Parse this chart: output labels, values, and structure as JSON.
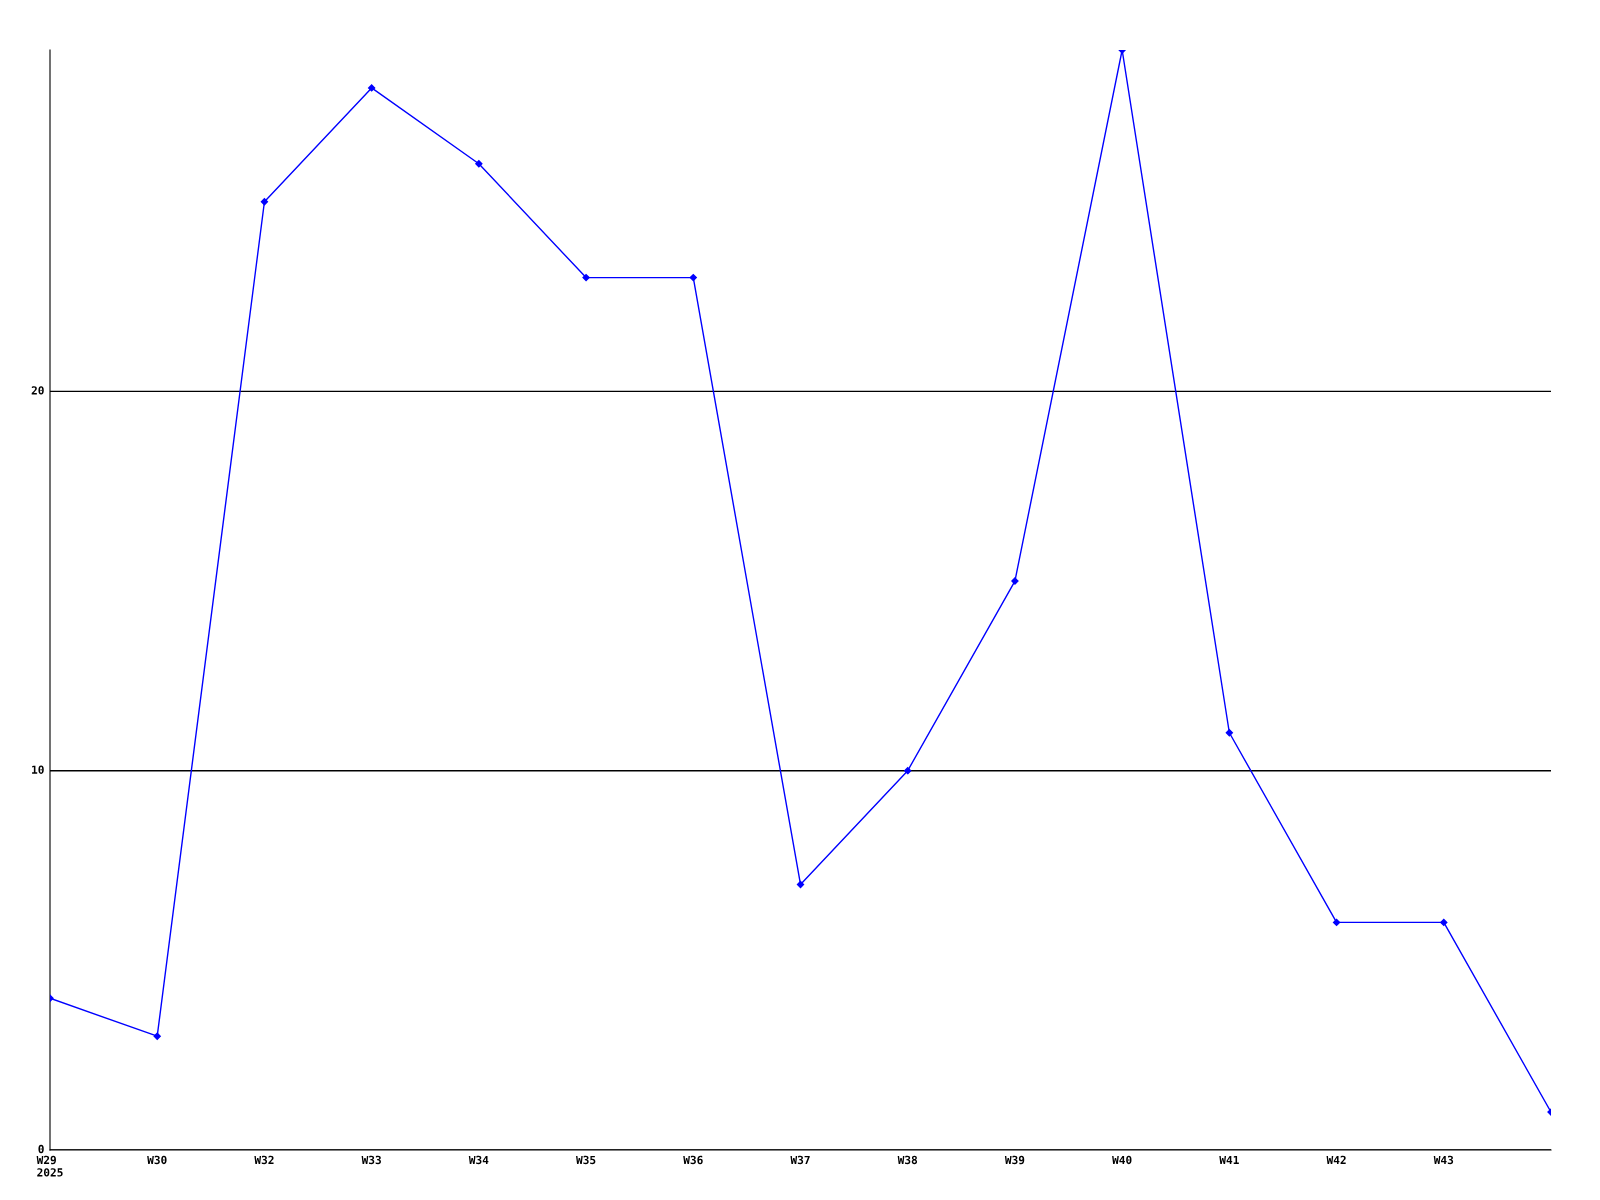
{
  "chart_data": {
    "type": "line",
    "categories": [
      "W29\n2025",
      "W30",
      "W32",
      "W33",
      "W34",
      "W35",
      "W36",
      "W37",
      "W38",
      "W39",
      "W40",
      "W41",
      "W42",
      "W43",
      null
    ],
    "series": [
      {
        "color": "#0000ff",
        "values": [
          4,
          3,
          25,
          28,
          26,
          23,
          23,
          7,
          10,
          15,
          29,
          11,
          6,
          6,
          1
        ]
      }
    ],
    "ylim": [
      0,
      29
    ],
    "yticks": [
      0,
      10,
      20
    ],
    "grid": "y",
    "marker": "diamond",
    "line_style": "solid"
  }
}
